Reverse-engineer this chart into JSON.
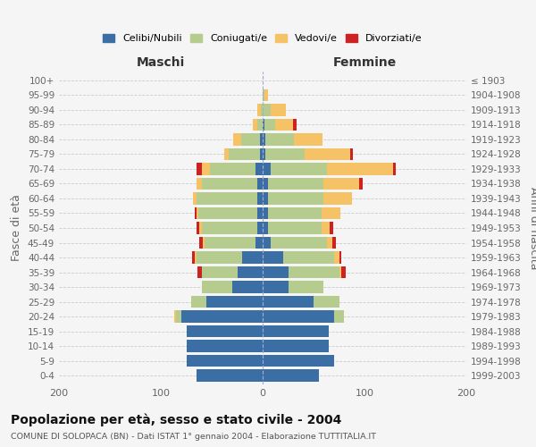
{
  "age_groups": [
    "0-4",
    "5-9",
    "10-14",
    "15-19",
    "20-24",
    "25-29",
    "30-34",
    "35-39",
    "40-44",
    "45-49",
    "50-54",
    "55-59",
    "60-64",
    "65-69",
    "70-74",
    "75-79",
    "80-84",
    "85-89",
    "90-94",
    "95-99",
    "100+"
  ],
  "birth_years": [
    "1999-2003",
    "1994-1998",
    "1989-1993",
    "1984-1988",
    "1979-1983",
    "1974-1978",
    "1969-1973",
    "1964-1968",
    "1959-1963",
    "1954-1958",
    "1949-1953",
    "1944-1948",
    "1939-1943",
    "1934-1938",
    "1929-1933",
    "1924-1928",
    "1919-1923",
    "1914-1918",
    "1909-1913",
    "1904-1908",
    "≤ 1903"
  ],
  "male": {
    "celibi": [
      65,
      75,
      75,
      75,
      80,
      55,
      30,
      25,
      20,
      7,
      5,
      5,
      5,
      5,
      7,
      3,
      3,
      0,
      0,
      0,
      0
    ],
    "coniugati": [
      0,
      0,
      0,
      0,
      5,
      15,
      30,
      35,
      45,
      50,
      55,
      58,
      60,
      55,
      45,
      30,
      18,
      5,
      2,
      0,
      0
    ],
    "vedovi": [
      0,
      0,
      0,
      0,
      2,
      0,
      0,
      0,
      2,
      2,
      2,
      2,
      3,
      5,
      8,
      5,
      8,
      5,
      3,
      0,
      0
    ],
    "divorziati": [
      0,
      0,
      0,
      0,
      0,
      0,
      0,
      4,
      2,
      3,
      3,
      2,
      0,
      0,
      5,
      0,
      0,
      0,
      0,
      0,
      0
    ]
  },
  "female": {
    "nubili": [
      55,
      70,
      65,
      65,
      70,
      50,
      25,
      25,
      20,
      8,
      5,
      5,
      5,
      5,
      8,
      3,
      3,
      2,
      0,
      0,
      0
    ],
    "coniugate": [
      0,
      0,
      0,
      0,
      10,
      25,
      35,
      50,
      50,
      55,
      53,
      53,
      55,
      55,
      55,
      38,
      28,
      10,
      8,
      2,
      0
    ],
    "vedove": [
      0,
      0,
      0,
      0,
      0,
      0,
      0,
      2,
      5,
      5,
      8,
      18,
      28,
      35,
      65,
      45,
      28,
      18,
      15,
      3,
      0
    ],
    "divorziate": [
      0,
      0,
      0,
      0,
      0,
      0,
      0,
      5,
      2,
      4,
      3,
      0,
      0,
      3,
      3,
      3,
      0,
      3,
      0,
      0,
      0
    ]
  },
  "colors": {
    "celibi": "#3a6ea5",
    "coniugati": "#b5cc8e",
    "vedovi": "#f5c265",
    "divorziati": "#cc2222"
  },
  "title": "Popolazione per età, sesso e stato civile - 2004",
  "subtitle": "COMUNE DI SOLOPACA (BN) - Dati ISTAT 1° gennaio 2004 - Elaborazione TUTTITALIA.IT",
  "xlabel_left": "Maschi",
  "xlabel_right": "Femmine",
  "ylabel_left": "Fasce di età",
  "ylabel_right": "Anni di nascita",
  "xlim": 200,
  "background_color": "#f5f5f5",
  "grid_color": "#cccccc"
}
